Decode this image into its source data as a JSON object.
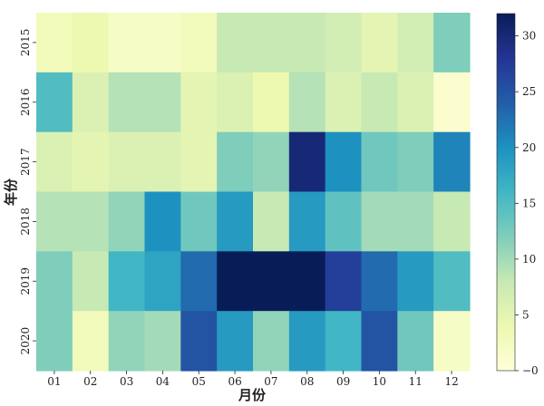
{
  "chart_data": {
    "type": "heatmap",
    "xlabel": "月份",
    "ylabel": "年份",
    "x_categories": [
      "01",
      "02",
      "03",
      "04",
      "05",
      "06",
      "07",
      "08",
      "09",
      "10",
      "11",
      "12"
    ],
    "y_categories": [
      "2015",
      "2016",
      "2017",
      "2018",
      "2019",
      "2020"
    ],
    "values": [
      [
        3,
        4,
        2,
        2,
        3,
        8,
        8,
        8,
        7,
        5,
        7,
        12
      ],
      [
        15,
        6,
        9,
        9,
        5,
        6,
        4,
        9,
        6,
        8,
        6,
        1
      ],
      [
        6,
        5,
        6,
        6,
        5,
        12,
        11,
        30,
        20,
        13,
        12,
        21
      ],
      [
        9,
        9,
        11,
        20,
        13,
        19,
        8,
        19,
        14,
        10,
        10,
        8
      ],
      [
        12,
        8,
        16,
        18,
        23,
        32,
        32,
        32,
        27,
        23,
        19,
        15
      ],
      [
        12,
        3,
        11,
        10,
        25,
        19,
        11,
        19,
        16,
        25,
        13,
        2
      ]
    ],
    "colorscale": "YlGnBu",
    "colorbar": {
      "min": 0,
      "max": 32,
      "ticks": [
        0,
        5,
        10,
        15,
        20,
        25,
        30
      ]
    }
  }
}
